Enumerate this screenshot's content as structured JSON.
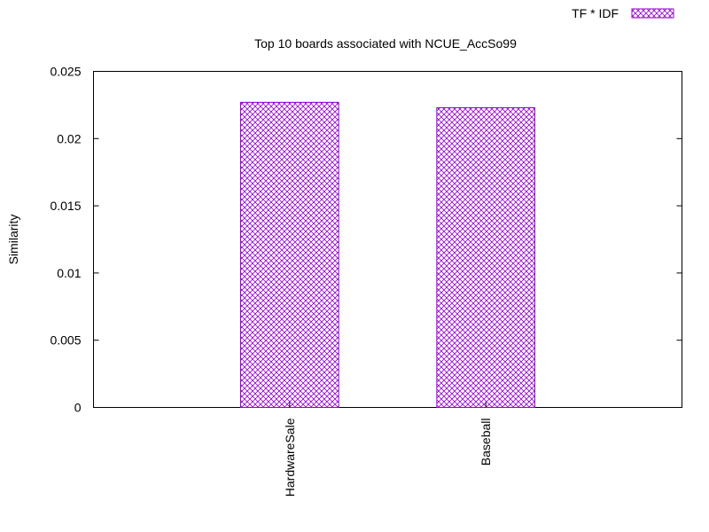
{
  "chart_data": {
    "type": "bar",
    "title": "Top 10 boards associated with NCUE_AccSo99",
    "xlabel": "",
    "ylabel": "Similarity",
    "categories": [
      "HardwareSale",
      "Baseball"
    ],
    "series": [
      {
        "name": "TF * IDF",
        "values": [
          0.0227,
          0.0223
        ]
      }
    ],
    "ylim": [
      0,
      0.025
    ],
    "yticks": [
      "0",
      "0.005",
      "0.01",
      "0.015",
      "0.02",
      "0.025"
    ],
    "legend": "top-right",
    "grid": false,
    "colors": {
      "bar": "#9400d3",
      "axis": "#000000"
    }
  }
}
